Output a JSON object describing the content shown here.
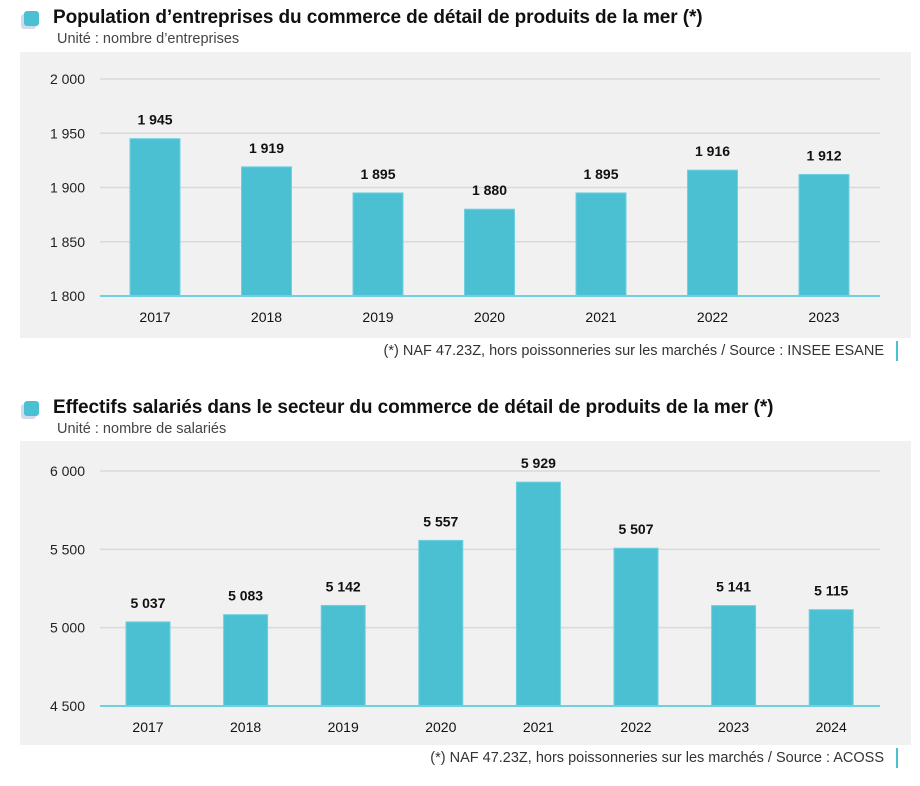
{
  "chart_data": [
    {
      "type": "bar",
      "title": "Population d’entreprises du commerce de détail de produits de la mer (*)",
      "subtitle": "Unité : nombre d’entreprises",
      "xlabel": "",
      "ylabel": "",
      "categories": [
        "2017",
        "2018",
        "2019",
        "2020",
        "2021",
        "2022",
        "2023"
      ],
      "values": [
        1945,
        1919,
        1895,
        1880,
        1895,
        1916,
        1912
      ],
      "value_labels": [
        "1 945",
        "1 919",
        "1 895",
        "1 880",
        "1 895",
        "1 916",
        "1 912"
      ],
      "ylim": [
        1800,
        2000
      ],
      "yticks": [
        1800,
        1850,
        1900,
        1950,
        2000
      ],
      "ytick_labels": [
        "1 800",
        "1 850",
        "1 900",
        "1 950",
        "2 000"
      ],
      "grid": true,
      "legend": "none",
      "bar_color": "#4bc0d3",
      "footnote": "(*) NAF 47.23Z, hors poissonneries sur les marchés / Source : INSEE ESANE"
    },
    {
      "type": "bar",
      "title": "Effectifs salariés dans le secteur du commerce de détail de produits de la mer (*)",
      "subtitle": "Unité : nombre de salariés",
      "xlabel": "",
      "ylabel": "",
      "categories": [
        "2017",
        "2018",
        "2019",
        "2020",
        "2021",
        "2022",
        "2023",
        "2024"
      ],
      "values": [
        5037,
        5083,
        5142,
        5557,
        5929,
        5507,
        5141,
        5115
      ],
      "value_labels": [
        "5 037",
        "5 083",
        "5 142",
        "5 557",
        "5 929",
        "5 507",
        "5 141",
        "5 115"
      ],
      "ylim": [
        4500,
        6000
      ],
      "yticks": [
        4500,
        5000,
        5500,
        6000
      ],
      "ytick_labels": [
        "4 500",
        "5 000",
        "5 500",
        "6 000"
      ],
      "grid": true,
      "legend": "none",
      "bar_color": "#4bc0d3",
      "footnote": "(*) NAF 47.23Z, hors poissonneries sur les marchés / Source : ACOSS"
    }
  ]
}
